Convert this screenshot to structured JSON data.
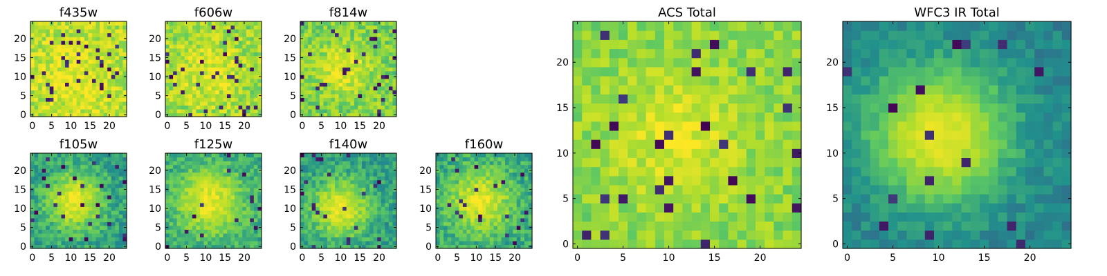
{
  "chart_data": {
    "type": "heatmap",
    "colormap": "viridis",
    "colormap_stops": [
      "#440154",
      "#3b528b",
      "#21918c",
      "#5ec962",
      "#b5de2b",
      "#fde725"
    ],
    "frame_color": "#000000",
    "panels": [
      {
        "id": "f435w",
        "title": "f435w",
        "size": 25,
        "peak": [
          11,
          10
        ],
        "sigma": 8.0,
        "amp": 0.15,
        "base": 0.78,
        "noise": 0.17,
        "dark_frac": 0.06,
        "xticks": [
          0,
          5,
          10,
          15,
          20
        ],
        "xtick_labels": [
          "0",
          "5",
          "10",
          "15",
          "20"
        ],
        "yticks": [
          0,
          5,
          10,
          15,
          20
        ],
        "ytick_labels": [
          "0",
          "5",
          "10",
          "15",
          "20"
        ]
      },
      {
        "id": "f606w",
        "title": "f606w",
        "size": 25,
        "peak": [
          11,
          11
        ],
        "sigma": 6.0,
        "amp": 0.18,
        "base": 0.74,
        "noise": 0.18,
        "dark_frac": 0.06,
        "xticks": [
          0,
          5,
          10,
          15,
          20
        ],
        "xtick_labels": [
          "0",
          "5",
          "10",
          "15",
          "20"
        ],
        "yticks": [
          0,
          5,
          10,
          15,
          20
        ],
        "ytick_labels": [
          "0",
          "5",
          "10",
          "15",
          "20"
        ]
      },
      {
        "id": "f814w",
        "title": "f814w",
        "size": 25,
        "peak": [
          11,
          12
        ],
        "sigma": 4.5,
        "amp": 0.25,
        "base": 0.68,
        "noise": 0.16,
        "dark_frac": 0.05,
        "xticks": [
          0,
          5,
          10,
          15,
          20
        ],
        "xtick_labels": [
          "0",
          "5",
          "10",
          "15",
          "20"
        ],
        "yticks": [
          0,
          5,
          10,
          15,
          20
        ],
        "ytick_labels": [
          "0",
          "5",
          "10",
          "15",
          "20"
        ]
      },
      {
        "id": "f105w",
        "title": "f105w",
        "size": 25,
        "peak": [
          11,
          12
        ],
        "sigma": 5.0,
        "amp": 0.5,
        "base": 0.45,
        "noise": 0.12,
        "dark_frac": 0.03,
        "xticks": [
          0,
          5,
          10,
          15,
          20
        ],
        "xtick_labels": [
          "0",
          "5",
          "10",
          "15",
          "20"
        ],
        "yticks": [
          0,
          5,
          10,
          15,
          20
        ],
        "ytick_labels": [
          "0",
          "5",
          "10",
          "15",
          "20"
        ]
      },
      {
        "id": "f125w",
        "title": "f125w",
        "size": 25,
        "peak": [
          11,
          12
        ],
        "sigma": 5.5,
        "amp": 0.45,
        "base": 0.5,
        "noise": 0.12,
        "dark_frac": 0.03,
        "xticks": [
          0,
          5,
          10,
          15,
          20
        ],
        "xtick_labels": [
          "0",
          "5",
          "10",
          "15",
          "20"
        ],
        "yticks": [
          0,
          5,
          10,
          15,
          20
        ],
        "ytick_labels": [
          "0",
          "5",
          "10",
          "15",
          "20"
        ]
      },
      {
        "id": "f140w",
        "title": "f140w",
        "size": 25,
        "peak": [
          10,
          10
        ],
        "sigma": 5.0,
        "amp": 0.5,
        "base": 0.45,
        "noise": 0.12,
        "dark_frac": 0.03,
        "xticks": [
          0,
          5,
          10,
          15,
          20
        ],
        "xtick_labels": [
          "0",
          "5",
          "10",
          "15",
          "20"
        ],
        "yticks": [
          0,
          5,
          10,
          15,
          20
        ],
        "ytick_labels": [
          "0",
          "5",
          "10",
          "15",
          "20"
        ]
      },
      {
        "id": "f160w",
        "title": "f160w",
        "size": 25,
        "peak": [
          11,
          12
        ],
        "sigma": 5.5,
        "amp": 0.45,
        "base": 0.48,
        "noise": 0.13,
        "dark_frac": 0.03,
        "xticks": [
          0,
          5,
          10,
          15,
          20
        ],
        "xtick_labels": [
          "0",
          "5",
          "10",
          "15",
          "20"
        ],
        "yticks": [
          0,
          5,
          10,
          15,
          20
        ],
        "ytick_labels": [
          "0",
          "5",
          "10",
          "15",
          "20"
        ]
      },
      {
        "id": "acs_total",
        "title": "ACS Total",
        "size": 25,
        "peak": [
          11,
          12
        ],
        "sigma": 5.0,
        "amp": 0.22,
        "base": 0.7,
        "noise": 0.13,
        "dark_frac": 0.04,
        "xticks": [
          0,
          5,
          10,
          15,
          20
        ],
        "xtick_labels": [
          "0",
          "5",
          "10",
          "15",
          "20"
        ],
        "yticks": [
          0,
          5,
          10,
          15,
          20
        ],
        "ytick_labels": [
          "0",
          "5",
          "10",
          "15",
          "20"
        ]
      },
      {
        "id": "wfc3_ir_total",
        "title": "WFC3 IR Total",
        "size": 25,
        "peak": [
          10,
          12
        ],
        "sigma": 5.0,
        "amp": 0.58,
        "base": 0.36,
        "noise": 0.07,
        "dark_frac": 0.025,
        "xticks": [
          0,
          5,
          10,
          15,
          20
        ],
        "xtick_labels": [
          "0",
          "5",
          "10",
          "15",
          "20"
        ],
        "yticks": [
          0,
          5,
          10,
          15,
          20
        ],
        "ytick_labels": [
          "0",
          "5",
          "10",
          "15",
          "20"
        ]
      }
    ]
  }
}
